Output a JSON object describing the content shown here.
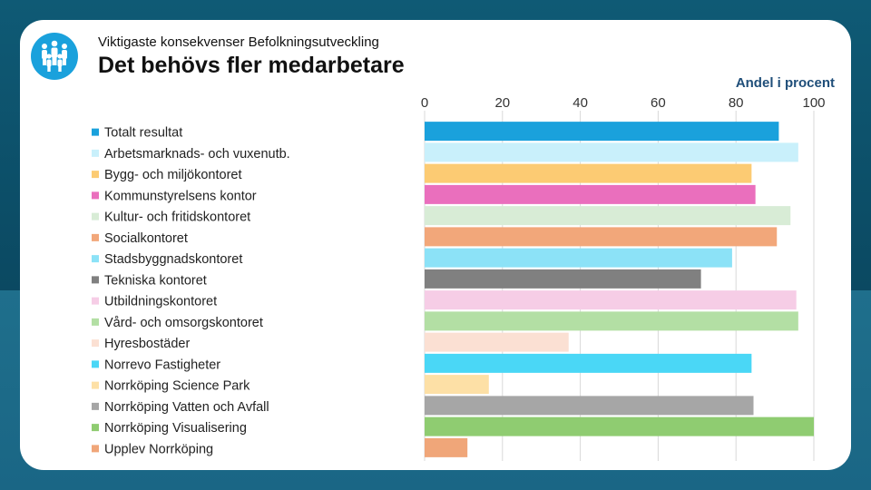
{
  "header": {
    "subtitle": "Viktigaste konsekvenser Befolkningsutveckling",
    "title": "Det behövs fler medarbetare",
    "logo_icon": "people-group-icon"
  },
  "chart_data": {
    "type": "bar",
    "orientation": "horizontal",
    "title": "Det behövs fler medarbetare",
    "xlabel": "Andel i procent",
    "ylabel": "",
    "xlim": [
      0,
      100
    ],
    "xticks": [
      0,
      20,
      40,
      60,
      80,
      100
    ],
    "grid": true,
    "legend_position": "left",
    "categories": [
      "Totalt resultat",
      "Arbetsmarknads- och vuxenutb.",
      "Bygg- och miljökontoret",
      "Kommunstyrelsens kontor",
      "Kultur- och fritidskontoret",
      "Socialkontoret",
      "Stadsbyggnadskontoret",
      "Tekniska kontoret",
      "Utbildningskontoret",
      "Vård- och omsorgskontoret",
      "Hyresbostäder",
      "Norrevo Fastigheter",
      "Norrköping Science Park",
      "Norrköping Vatten och Avfall",
      "Norrköping Visualisering",
      "Upplev Norrköping"
    ],
    "values": [
      91,
      96,
      84,
      85,
      94,
      90.5,
      79,
      71,
      95.5,
      96,
      37,
      84,
      16.5,
      84.5,
      100,
      11
    ],
    "colors": [
      "#1aa1dc",
      "#c9f0fb",
      "#fccb73",
      "#ea6fbd",
      "#d8ecd6",
      "#f2a77a",
      "#8ce2f7",
      "#808080",
      "#f6cde6",
      "#b3dfa4",
      "#fbe0d3",
      "#4ad7f6",
      "#fde0a6",
      "#a6a6a6",
      "#8fcc71",
      "#f0a679"
    ]
  }
}
